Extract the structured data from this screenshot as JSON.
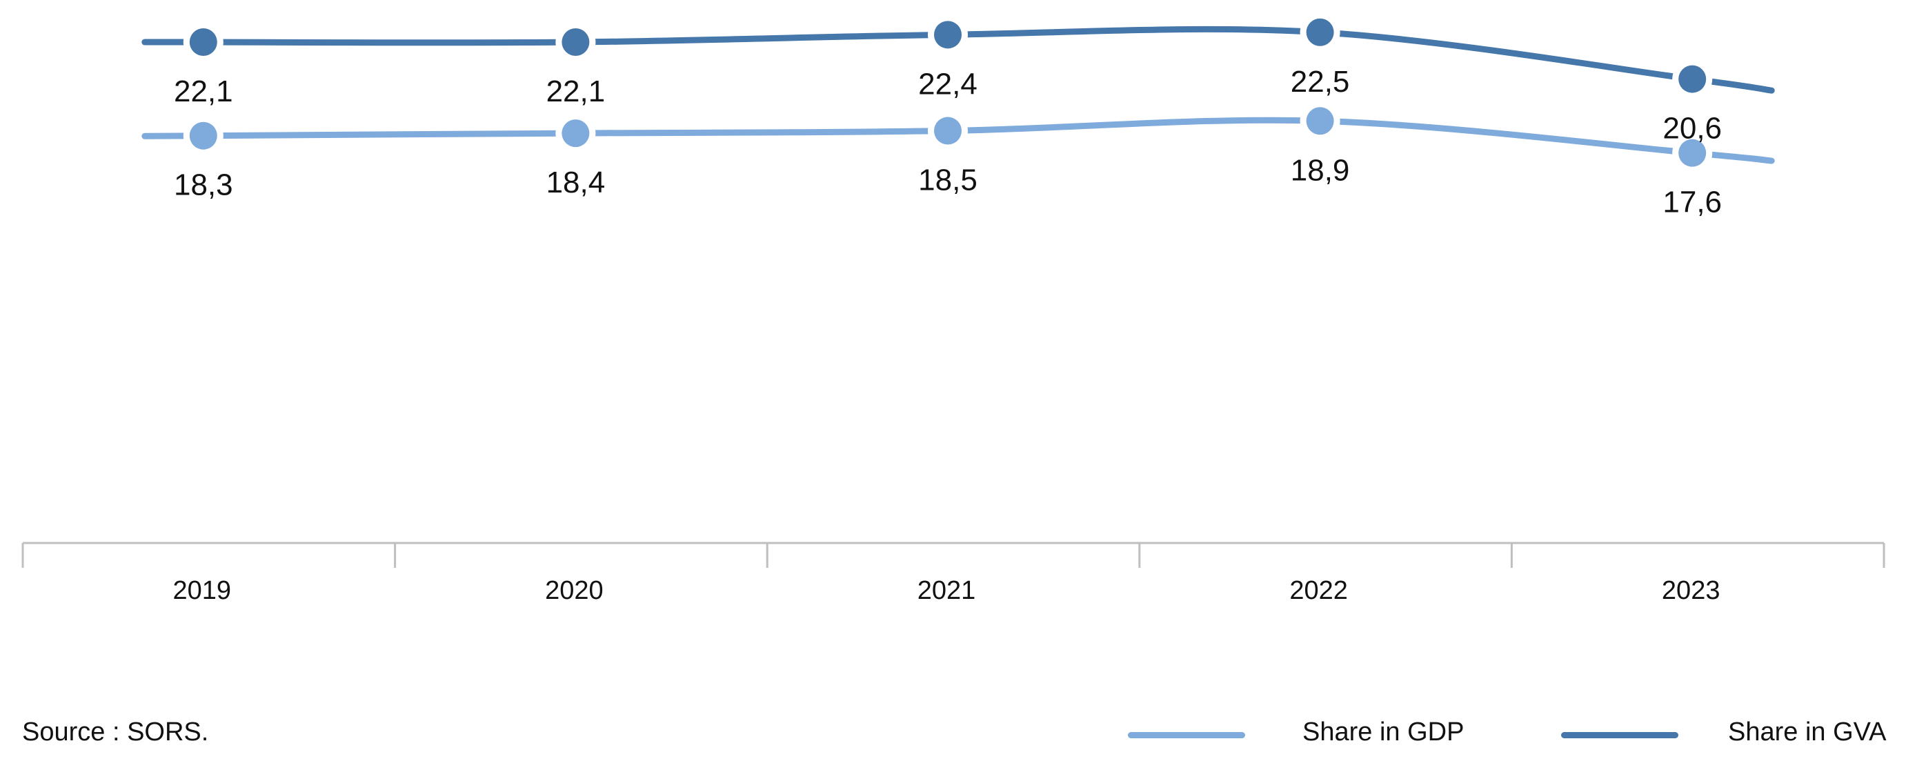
{
  "chart_data": {
    "type": "line",
    "categories": [
      "2019",
      "2020",
      "2021",
      "2022",
      "2023"
    ],
    "series": [
      {
        "name": "Share in GVA",
        "color": "#4577aa",
        "values": [
          22.1,
          22.1,
          22.4,
          22.5,
          20.6
        ],
        "labels": [
          "22,1",
          "22,1",
          "22,4",
          "22,5",
          "20,6"
        ]
      },
      {
        "name": "Share in GDP",
        "color": "#7faadc",
        "values": [
          18.3,
          18.4,
          18.5,
          18.9,
          17.6
        ],
        "labels": [
          "18,3",
          "18,4",
          "18,5",
          "18,9",
          "17,6"
        ]
      }
    ],
    "legend_position": "bottom-right",
    "grid": false
  },
  "footer": {
    "source": "Source : SORS."
  },
  "legend": {
    "gdp_label": "Share in GDP",
    "gva_label": "Share in GVA",
    "gdp_color": "#7faadc",
    "gva_color": "#4577aa"
  }
}
